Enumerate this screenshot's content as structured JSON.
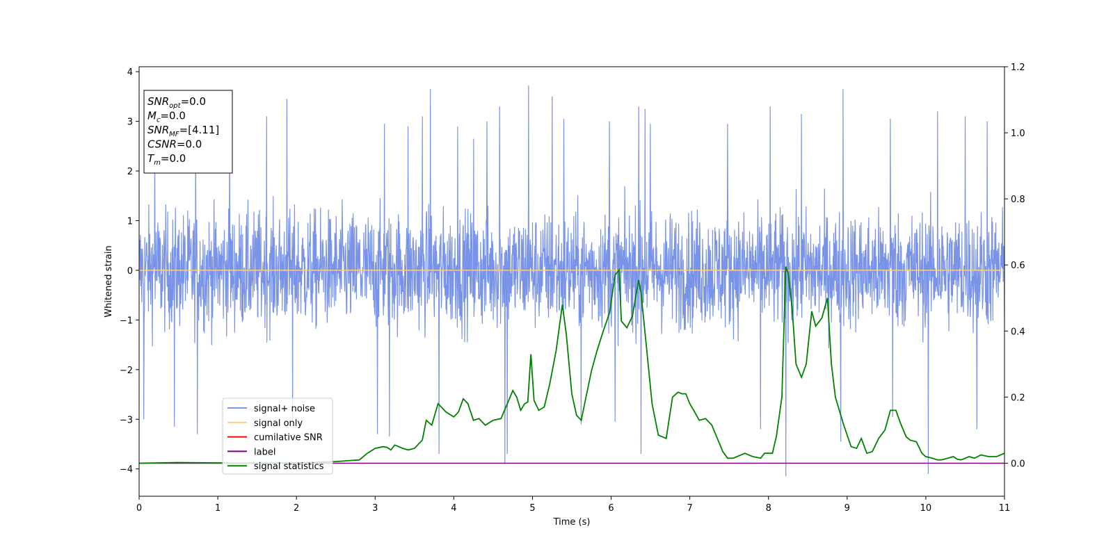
{
  "chart_data": {
    "type": "line",
    "xlabel": "Time (s)",
    "ylabel": "Whitened strain",
    "xlim": [
      0,
      11
    ],
    "ylim": [
      -4.55,
      4.1
    ],
    "y2lim": [
      -0.1,
      1.2
    ],
    "x_ticks": [
      "0",
      "1",
      "2",
      "3",
      "4",
      "5",
      "6",
      "7",
      "8",
      "9",
      "10",
      "11"
    ],
    "y_ticks": [
      "4",
      "3",
      "2",
      "1",
      "0",
      "−1",
      "−2",
      "−3",
      "−4"
    ],
    "y2_ticks": [
      "1.2",
      "1.0",
      "0.8",
      "0.6",
      "0.4",
      "0.2",
      "0.0"
    ],
    "grid": false,
    "legend_position": "lower-left",
    "legend": [
      {
        "name": "signal+ noise",
        "color": "#7893e8"
      },
      {
        "name": "signal only",
        "color": "#ffcc80"
      },
      {
        "name": "cumilative SNR",
        "color": "#ff0000"
      },
      {
        "name": "label",
        "color": "#800080"
      },
      {
        "name": "signal statistics",
        "color": "#008000"
      }
    ],
    "stats_box": [
      {
        "var": "SNR",
        "sub": "opt",
        "value": "=0.0"
      },
      {
        "var": "M",
        "sub": "c",
        "value": "=0.0"
      },
      {
        "var": "SNR",
        "sub": "MF",
        "value": "=[4.11]"
      },
      {
        "var": "CSNR",
        "sub": "",
        "value": "=0.0"
      },
      {
        "var": "T",
        "sub": "m",
        "value": "=0.0"
      }
    ],
    "series": [
      {
        "name": "signal+ noise",
        "axis": "left",
        "color": "#7893e8",
        "description_values": "dense noisy time series between about -4.2 and 3.7",
        "noise_amplitude_std": 0.95,
        "spikes": [
          {
            "x": 0.06,
            "y": -3.0
          },
          {
            "x": 0.2,
            "y": 2.6
          },
          {
            "x": 0.45,
            "y": -3.15
          },
          {
            "x": 0.72,
            "y": 2.9
          },
          {
            "x": 0.74,
            "y": -3.3
          },
          {
            "x": 1.15,
            "y": 3.1
          },
          {
            "x": 1.62,
            "y": 3.1
          },
          {
            "x": 1.88,
            "y": 3.45
          },
          {
            "x": 1.95,
            "y": -3.05
          },
          {
            "x": 3.03,
            "y": -3.3
          },
          {
            "x": 3.12,
            "y": 2.95
          },
          {
            "x": 3.18,
            "y": -3.35
          },
          {
            "x": 3.42,
            "y": 2.9
          },
          {
            "x": 3.6,
            "y": 3.1
          },
          {
            "x": 3.7,
            "y": 3.65
          },
          {
            "x": 3.81,
            "y": -3.7
          },
          {
            "x": 4.05,
            "y": 2.9
          },
          {
            "x": 4.25,
            "y": 2.65
          },
          {
            "x": 4.42,
            "y": 3.0
          },
          {
            "x": 4.58,
            "y": 3.3
          },
          {
            "x": 4.65,
            "y": -3.9
          },
          {
            "x": 4.68,
            "y": -3.7
          },
          {
            "x": 4.95,
            "y": 3.72
          },
          {
            "x": 5.25,
            "y": 3.5
          },
          {
            "x": 5.4,
            "y": 3.05
          },
          {
            "x": 5.62,
            "y": -3.1
          },
          {
            "x": 5.98,
            "y": 3.0
          },
          {
            "x": 6.05,
            "y": -3.05
          },
          {
            "x": 6.35,
            "y": 3.3
          },
          {
            "x": 6.38,
            "y": -3.7
          },
          {
            "x": 6.43,
            "y": 3.25
          },
          {
            "x": 6.5,
            "y": 2.95
          },
          {
            "x": 7.48,
            "y": 2.95
          },
          {
            "x": 7.9,
            "y": -3.2
          },
          {
            "x": 8.02,
            "y": 3.3
          },
          {
            "x": 8.22,
            "y": -4.15
          },
          {
            "x": 8.42,
            "y": 3.15
          },
          {
            "x": 8.95,
            "y": 3.65
          },
          {
            "x": 8.92,
            "y": -3.45
          },
          {
            "x": 9.55,
            "y": 3.05
          },
          {
            "x": 9.58,
            "y": -2.95
          },
          {
            "x": 10.03,
            "y": -4.1
          },
          {
            "x": 10.15,
            "y": 3.2
          },
          {
            "x": 10.5,
            "y": 3.1
          },
          {
            "x": 10.65,
            "y": -3.2
          },
          {
            "x": 10.78,
            "y": 3.0
          }
        ]
      },
      {
        "name": "signal only",
        "axis": "left",
        "color": "#ffcc80",
        "x": [
          0,
          11
        ],
        "y": [
          0,
          0
        ]
      },
      {
        "name": "label",
        "axis": "right",
        "color": "#800080",
        "x": [
          0,
          11
        ],
        "y": [
          0.0,
          0.0
        ]
      },
      {
        "name": "signal statistics",
        "axis": "right",
        "color": "#008000",
        "x": [
          0,
          0.5,
          1.0,
          1.5,
          2.0,
          2.5,
          2.8,
          2.9,
          3.0,
          3.1,
          3.15,
          3.2,
          3.25,
          3.3,
          3.35,
          3.42,
          3.5,
          3.6,
          3.65,
          3.72,
          3.8,
          3.9,
          4.0,
          4.06,
          4.12,
          4.18,
          4.25,
          4.32,
          4.4,
          4.5,
          4.6,
          4.68,
          4.75,
          4.8,
          4.85,
          4.9,
          4.94,
          4.98,
          5.02,
          5.08,
          5.15,
          5.22,
          5.3,
          5.38,
          5.43,
          5.5,
          5.56,
          5.62,
          5.68,
          5.75,
          5.82,
          5.9,
          5.98,
          6.05,
          6.1,
          6.13,
          6.2,
          6.27,
          6.35,
          6.38,
          6.45,
          6.52,
          6.6,
          6.7,
          6.78,
          6.85,
          6.9,
          6.95,
          7.0,
          7.05,
          7.12,
          7.2,
          7.28,
          7.35,
          7.42,
          7.48,
          7.55,
          7.6,
          7.7,
          7.8,
          7.9,
          7.95,
          8.05,
          8.1,
          8.17,
          8.22,
          8.25,
          8.3,
          8.35,
          8.42,
          8.48,
          8.55,
          8.6,
          8.68,
          8.75,
          8.8,
          8.85,
          8.95,
          9.05,
          9.12,
          9.18,
          9.25,
          9.32,
          9.4,
          9.48,
          9.55,
          9.62,
          9.68,
          9.75,
          9.8,
          9.88,
          9.95,
          10.0,
          10.08,
          10.15,
          10.2,
          10.28,
          10.35,
          10.4,
          10.45,
          10.55,
          10.62,
          10.7,
          10.8,
          10.9,
          11.0
        ],
        "y": [
          0.0,
          0.002,
          0.001,
          0.0,
          0.001,
          0.005,
          0.01,
          0.03,
          0.045,
          0.05,
          0.048,
          0.04,
          0.055,
          0.05,
          0.045,
          0.04,
          0.045,
          0.07,
          0.13,
          0.115,
          0.18,
          0.155,
          0.14,
          0.155,
          0.195,
          0.18,
          0.13,
          0.135,
          0.115,
          0.13,
          0.135,
          0.18,
          0.22,
          0.2,
          0.16,
          0.18,
          0.185,
          0.33,
          0.19,
          0.16,
          0.17,
          0.24,
          0.34,
          0.48,
          0.39,
          0.21,
          0.145,
          0.13,
          0.2,
          0.28,
          0.34,
          0.4,
          0.455,
          0.57,
          0.585,
          0.43,
          0.41,
          0.445,
          0.555,
          0.515,
          0.35,
          0.18,
          0.085,
          0.075,
          0.2,
          0.215,
          0.21,
          0.21,
          0.18,
          0.16,
          0.13,
          0.135,
          0.115,
          0.075,
          0.035,
          0.015,
          0.015,
          0.02,
          0.03,
          0.02,
          0.015,
          0.03,
          0.03,
          0.08,
          0.2,
          0.595,
          0.575,
          0.47,
          0.3,
          0.26,
          0.3,
          0.46,
          0.415,
          0.44,
          0.5,
          0.3,
          0.2,
          0.12,
          0.05,
          0.045,
          0.075,
          0.03,
          0.035,
          0.075,
          0.1,
          0.16,
          0.16,
          0.12,
          0.08,
          0.07,
          0.065,
          0.03,
          0.02,
          0.015,
          0.01,
          0.01,
          0.015,
          0.02,
          0.012,
          0.01,
          0.02,
          0.015,
          0.025,
          0.02,
          0.02,
          0.03
        ]
      }
    ]
  }
}
